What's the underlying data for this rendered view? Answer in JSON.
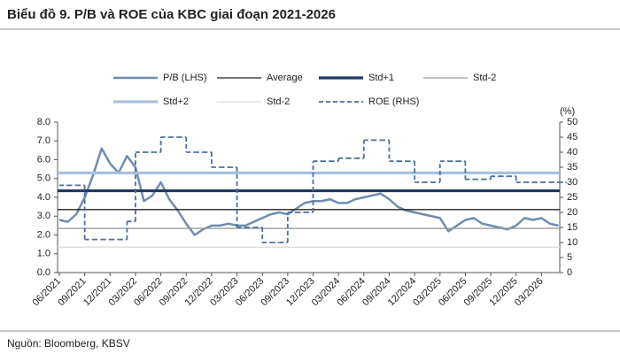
{
  "chart_data": {
    "type": "line",
    "title": "Biểu đồ 9. P/B và ROE của KBC giai đoạn 2021-2026",
    "source": "Nguồn: Bloomberg, KBSV",
    "y2_unit_label": "(%)",
    "categories": [
      "06/2021",
      null,
      null,
      "09/2021",
      null,
      null,
      "12/2021",
      null,
      null,
      "03/2022",
      null,
      null,
      "06/2022",
      null,
      null,
      "09/2022",
      null,
      null,
      "12/2022",
      null,
      null,
      "03/2023",
      null,
      null,
      "06/2023",
      null,
      null,
      "09/2023",
      null,
      null,
      "12/2023",
      null,
      null,
      "03/2024",
      null,
      null,
      "06/2024",
      null,
      null,
      "09/2024",
      null,
      null,
      "12/2024",
      null,
      null,
      "03/2025",
      null,
      null,
      "06/2025",
      null,
      null,
      "09/2025",
      null,
      null,
      "12/2025",
      null,
      null,
      "03/2026",
      null,
      null
    ],
    "ylim": [
      0,
      8
    ],
    "yticks": [
      {
        "value": 0,
        "label": "0.0"
      },
      {
        "value": 1,
        "label": "1.0"
      },
      {
        "value": 2,
        "label": "2.0"
      },
      {
        "value": 3,
        "label": "3.0"
      },
      {
        "value": 4,
        "label": "4.0"
      },
      {
        "value": 5,
        "label": "5.0"
      },
      {
        "value": 6,
        "label": "6.0"
      },
      {
        "value": 7,
        "label": "7.0"
      },
      {
        "value": 8,
        "label": "8.0"
      }
    ],
    "y2lim": [
      0,
      50
    ],
    "y2ticks": [
      0,
      5,
      10,
      15,
      20,
      25,
      30,
      35,
      40,
      45,
      50
    ],
    "series": [
      {
        "name": "P/B (LHS)",
        "color": "#6f8cb0",
        "values": [
          2.8,
          2.7,
          3.1,
          4.0,
          5.2,
          6.6,
          5.8,
          5.3,
          6.2,
          5.6,
          3.8,
          4.1,
          4.8,
          3.9,
          3.3,
          2.6,
          2.0,
          2.3,
          2.5,
          2.5,
          2.6,
          2.5,
          2.5,
          2.7,
          2.9,
          3.1,
          3.2,
          3.1,
          3.4,
          3.7,
          3.8,
          3.8,
          3.9,
          3.7,
          3.7,
          3.9,
          4.0,
          4.1,
          4.2,
          3.9,
          3.5,
          3.3,
          3.2,
          3.1,
          3.0,
          2.9,
          2.2,
          2.5,
          2.8,
          2.9,
          2.6,
          2.5,
          2.4,
          2.3,
          2.5,
          2.9,
          2.8,
          2.9,
          2.6,
          2.5
        ]
      },
      {
        "name": "Average",
        "color": "#222222",
        "value": 3.35
      },
      {
        "name": "Std+1",
        "color": "#1f3864",
        "value": 4.35
      },
      {
        "name": "Std-2",
        "color": "#9a9a9a",
        "value": 2.35
      },
      {
        "name": "Std+2",
        "color": "#a9bfdc",
        "value": 5.3
      },
      {
        "name": "Std-2",
        "color": "#dcdcdc",
        "value": 1.35
      },
      {
        "name": "ROE (RHS)",
        "color": "#4e6e99",
        "axis": "y2",
        "dashed": true,
        "step": "after",
        "values": [
          29,
          29,
          29,
          11,
          11,
          11,
          11,
          11,
          17,
          40,
          40,
          40,
          45,
          45,
          45,
          40,
          40,
          40,
          35,
          35,
          35,
          15,
          15,
          15,
          10,
          10,
          10,
          20,
          20,
          20,
          37,
          37,
          37,
          38,
          38,
          38,
          44,
          44,
          44,
          37,
          37,
          37,
          30,
          30,
          30,
          37,
          37,
          37,
          31,
          31,
          31,
          32,
          32,
          32,
          30,
          30,
          30,
          30,
          30,
          30
        ]
      }
    ]
  }
}
